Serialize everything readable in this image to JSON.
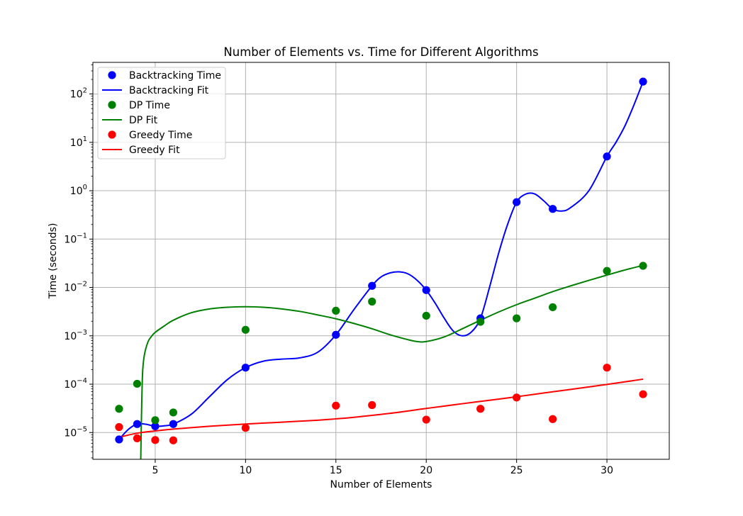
{
  "chart_data": {
    "type": "scatter",
    "title": "Number of Elements vs. Time for Different Algorithms",
    "xlabel": "Number of Elements",
    "ylabel": "Time (seconds)",
    "xlim": [
      1.55,
      33.45
    ],
    "ylim": [
      2.8e-06,
      450
    ],
    "yscale": "log",
    "grid": true,
    "legend_position": "top-left",
    "x_ticks": [
      5,
      10,
      15,
      20,
      25,
      30
    ],
    "y_ticks": [
      {
        "value": 1e-05,
        "base": "10",
        "exp": "−5"
      },
      {
        "value": 0.0001,
        "base": "10",
        "exp": "−4"
      },
      {
        "value": 0.001,
        "base": "10",
        "exp": "−3"
      },
      {
        "value": 0.01,
        "base": "10",
        "exp": "−2"
      },
      {
        "value": 0.1,
        "base": "10",
        "exp": "−1"
      },
      {
        "value": 1,
        "base": "10",
        "exp": "0"
      },
      {
        "value": 10,
        "base": "10",
        "exp": "1"
      },
      {
        "value": 100,
        "base": "10",
        "exp": "2"
      }
    ],
    "series": [
      {
        "name": "Backtracking Time",
        "kind": "scatter",
        "color": "#0000ff",
        "x": [
          3,
          4,
          5,
          6,
          10,
          15,
          17,
          20,
          23,
          25,
          27,
          30,
          32
        ],
        "y": [
          7.2e-06,
          1.5e-05,
          1.35e-05,
          1.5e-05,
          0.00022,
          0.00105,
          0.0108,
          0.0088,
          0.0023,
          0.58,
          0.42,
          5.1,
          180
        ]
      },
      {
        "name": "Backtracking Fit",
        "kind": "line",
        "color": "#0000ff",
        "x": [
          3,
          3.5,
          4,
          4.5,
          5,
          5.5,
          6,
          7,
          8,
          9,
          10,
          11,
          12,
          13,
          14,
          15,
          16,
          17,
          17.5,
          18,
          18.5,
          19,
          19.5,
          20,
          20.5,
          21,
          21.5,
          22,
          22.5,
          23,
          23.5,
          24,
          24.5,
          25,
          25.5,
          26,
          26.5,
          27,
          27.5,
          28,
          29,
          30,
          30.5,
          31,
          31.5,
          32
        ],
        "y": [
          7.2e-06,
          1.15e-05,
          1.5e-05,
          1.48e-05,
          1.35e-05,
          1.38e-05,
          1.5e-05,
          2.4e-05,
          5.5e-05,
          0.000125,
          0.00022,
          0.0003,
          0.00033,
          0.00035,
          0.00046,
          0.00105,
          0.0035,
          0.0108,
          0.0165,
          0.02,
          0.021,
          0.019,
          0.014,
          0.0088,
          0.0047,
          0.0023,
          0.00125,
          0.001,
          0.0012,
          0.0023,
          0.01,
          0.05,
          0.2,
          0.58,
          0.85,
          0.86,
          0.62,
          0.42,
          0.38,
          0.45,
          1.0,
          5.1,
          10,
          22,
          60,
          180
        ]
      },
      {
        "name": "DP Time",
        "kind": "scatter",
        "color": "#008000",
        "x": [
          3,
          4,
          5,
          6,
          10,
          15,
          17,
          20,
          23,
          25,
          27,
          30,
          32
        ],
        "y": [
          3.1e-05,
          0.000102,
          1.8e-05,
          2.6e-05,
          0.00133,
          0.0033,
          0.0051,
          0.0026,
          0.00195,
          0.0023,
          0.0039,
          0.022,
          0.028
        ]
      },
      {
        "name": "DP Fit",
        "kind": "line",
        "color": "#008000",
        "x": [
          4.2,
          4.24,
          4.3,
          4.4,
          4.6,
          4.8,
          5,
          5.5,
          6,
          7,
          8,
          9,
          10,
          11,
          12,
          13,
          14,
          15,
          16,
          17,
          18,
          19,
          19.5,
          20,
          21,
          22,
          23,
          24,
          25,
          26,
          27,
          28,
          29,
          30,
          31,
          32
        ],
        "y": [
          2.8e-06,
          2.2e-05,
          0.00017,
          0.0004,
          0.00075,
          0.00098,
          0.00118,
          0.0016,
          0.0021,
          0.003,
          0.0036,
          0.0039,
          0.004,
          0.0039,
          0.0036,
          0.0032,
          0.0027,
          0.00225,
          0.0018,
          0.0014,
          0.00105,
          0.00083,
          0.00076,
          0.00076,
          0.00095,
          0.0014,
          0.0021,
          0.0031,
          0.0044,
          0.006,
          0.0082,
          0.0108,
          0.014,
          0.018,
          0.023,
          0.0285
        ]
      },
      {
        "name": "Greedy Time",
        "kind": "scatter",
        "color": "#ff0000",
        "x": [
          3,
          4,
          5,
          6,
          10,
          15,
          17,
          20,
          23,
          25,
          27,
          30,
          32
        ],
        "y": [
          1.3e-05,
          7.6e-06,
          7e-06,
          6.9e-06,
          1.25e-05,
          3.6e-05,
          3.7e-05,
          1.85e-05,
          3.1e-05,
          5.3e-05,
          1.9e-05,
          0.00022,
          6.2e-05
        ]
      },
      {
        "name": "Greedy Fit",
        "kind": "line",
        "color": "#ff0000",
        "x": [
          3,
          4,
          5,
          6,
          8,
          10,
          12,
          14,
          15,
          16,
          18,
          20,
          22,
          24,
          25,
          26,
          28,
          30,
          32
        ],
        "y": [
          8e-06,
          9.7e-06,
          1.08e-05,
          1.18e-05,
          1.35e-05,
          1.5e-05,
          1.64e-05,
          1.8e-05,
          1.92e-05,
          2.07e-05,
          2.5e-05,
          3.15e-05,
          3.95e-05,
          4.9e-05,
          5.5e-05,
          6.2e-05,
          7.8e-05,
          9.9e-05,
          0.000127
        ]
      }
    ]
  }
}
